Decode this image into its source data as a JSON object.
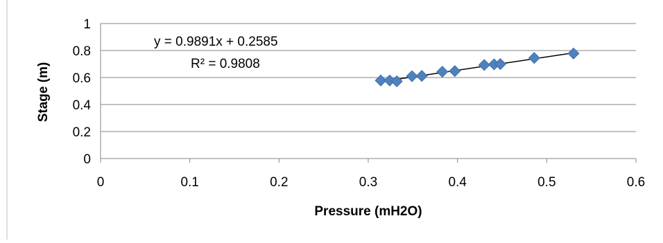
{
  "chart_data": {
    "type": "scatter",
    "title": "",
    "xlabel": "Pressure (mH2O)",
    "ylabel": "Stage (m)",
    "xlim": [
      0,
      0.6
    ],
    "ylim": [
      0,
      1
    ],
    "x_ticks": [
      0,
      0.1,
      0.2,
      0.3,
      0.4,
      0.5,
      0.6
    ],
    "x_tick_labels": [
      "0",
      "0.1",
      "0.2",
      "0.3",
      "0.4",
      "0.5",
      "0.6"
    ],
    "y_ticks": [
      0,
      0.2,
      0.4,
      0.6,
      0.8,
      1
    ],
    "y_tick_labels": [
      "0",
      "0.2",
      "0.4",
      "0.6",
      "0.8",
      "1"
    ],
    "grid": {
      "horizontal": true,
      "vertical": false
    },
    "legend": "none",
    "marker": "diamond",
    "marker_color": "#4f81bd",
    "trendline_color": "#000000",
    "series": [
      {
        "x": [
          0.314,
          0.324,
          0.332,
          0.349,
          0.36,
          0.383,
          0.397,
          0.43,
          0.441,
          0.448,
          0.486,
          0.53
        ],
        "y": [
          0.578,
          0.578,
          0.572,
          0.61,
          0.612,
          0.643,
          0.648,
          0.693,
          0.698,
          0.7,
          0.745,
          0.778
        ]
      }
    ],
    "trendline": {
      "slope": 0.9891,
      "intercept": 0.2585,
      "x_range": [
        0.314,
        0.53
      ],
      "equation_label": "y = 0.9891x + 0.2585",
      "r2_label": "R² = 0.9808"
    }
  }
}
